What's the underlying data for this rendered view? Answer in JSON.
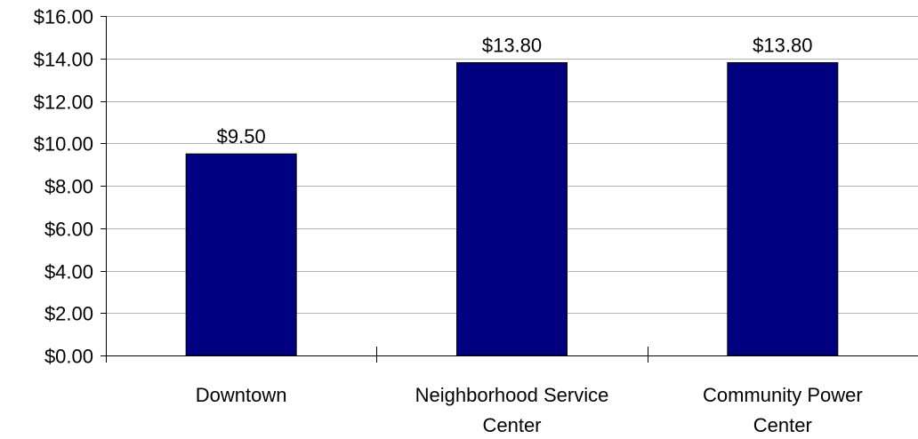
{
  "chart_data": {
    "type": "bar",
    "categories": [
      [
        "Downtown"
      ],
      [
        "Neighborhood Service",
        "Center"
      ],
      [
        "Community Power",
        "Center"
      ]
    ],
    "values": [
      9.5,
      13.8,
      13.8
    ],
    "data_labels": [
      "$9.50",
      "$13.80",
      "$13.80"
    ],
    "title": "",
    "xlabel": "",
    "ylabel": "",
    "ylim": [
      0,
      16
    ],
    "y_ticks": [
      0,
      2,
      4,
      6,
      8,
      10,
      12,
      14,
      16
    ],
    "y_tick_labels": [
      "$0.00",
      "$2.00",
      "$4.00",
      "$6.00",
      "$8.00",
      "$10.00",
      "$12.00",
      "$14.00",
      "$16.00"
    ],
    "grid": true,
    "legend": "none",
    "colors": {
      "bar": "#000080",
      "grid": "#b3b3b3",
      "axis": "#000000"
    }
  }
}
